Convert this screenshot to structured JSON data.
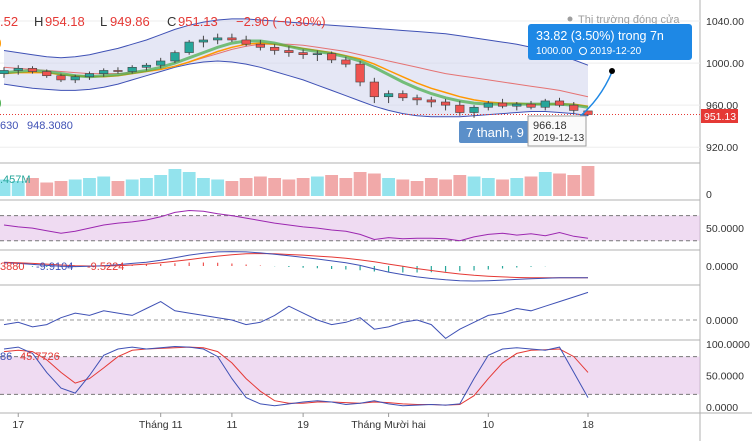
{
  "header": {
    "o_value": ".52",
    "h_label": "H",
    "h_value": "954.18",
    "l_label": "L",
    "l_value": "949.86",
    "c_label": "C",
    "c_value": "951.13",
    "change": "−2.90 (−0.30%)",
    "market_status": "Thị trường đóng cửa"
  },
  "colors": {
    "up": "#26a69a",
    "down": "#ef5350",
    "bb_fill": "#c5cae9",
    "bb_line": "#3f51b5",
    "ma_fast": "#4caf50",
    "ma_mid": "#ff9800",
    "ma_slow": "#e57373",
    "osc_band": "#e1bee7",
    "accent": "#1e88e5"
  },
  "overlay_labels": {
    "ma_value": "630",
    "bb_value": "948.3080",
    "volume_value": ".457M",
    "macd_values": [
      "3880",
      "-9.9104",
      "-9.5224"
    ],
    "stoch_values": [
      "86",
      "45.7726"
    ]
  },
  "measure_tooltip": {
    "line1": "33.82 (3.50%) trong 7n",
    "price": "1000.00",
    "date": "2019-12-20"
  },
  "hover_tooltip": {
    "price": "966.18",
    "date": "2019-12-13"
  },
  "candle_counter": "7 thanh, 9",
  "price_badge": "951.13",
  "price_axis": {
    "ticks": [
      "1040.00",
      "1000.00",
      "960.00",
      "920.00"
    ]
  },
  "pane_axes": {
    "volume": [
      "0"
    ],
    "rsi": [
      "50.0000"
    ],
    "macd": [
      "0.0000"
    ],
    "momentum": [
      "0.0000"
    ],
    "stoch": [
      "100.0000",
      "50.0000",
      "0.0000"
    ]
  },
  "time_axis": {
    "labels": [
      "17",
      "Tháng 11",
      "11",
      "19",
      "Tháng Mười hai",
      "10",
      "18"
    ]
  },
  "chart_data": {
    "type": "candlestick",
    "ylim": [
      905,
      1060
    ],
    "candles": [
      [
        990,
        996,
        986,
        993
      ],
      [
        993,
        998,
        989,
        995
      ],
      [
        995,
        997,
        990,
        992
      ],
      [
        992,
        994,
        986,
        988
      ],
      [
        988,
        990,
        982,
        984
      ],
      [
        984,
        989,
        981,
        987
      ],
      [
        987,
        992,
        984,
        990
      ],
      [
        990,
        995,
        987,
        993
      ],
      [
        993,
        996,
        990,
        992
      ],
      [
        992,
        998,
        990,
        996
      ],
      [
        996,
        1000,
        993,
        998
      ],
      [
        998,
        1005,
        995,
        1002
      ],
      [
        1002,
        1012,
        1000,
        1010
      ],
      [
        1010,
        1022,
        1008,
        1020
      ],
      [
        1020,
        1026,
        1015,
        1022
      ],
      [
        1022,
        1028,
        1018,
        1024
      ],
      [
        1024,
        1028,
        1020,
        1022
      ],
      [
        1022,
        1026,
        1016,
        1018
      ],
      [
        1018,
        1022,
        1012,
        1015
      ],
      [
        1015,
        1018,
        1008,
        1012
      ],
      [
        1012,
        1016,
        1006,
        1010
      ],
      [
        1010,
        1013,
        1004,
        1008
      ],
      [
        1008,
        1012,
        1002,
        1009
      ],
      [
        1009,
        1011,
        1000,
        1003
      ],
      [
        1003,
        1006,
        996,
        999
      ],
      [
        999,
        1002,
        978,
        982
      ],
      [
        982,
        986,
        962,
        968
      ],
      [
        968,
        974,
        962,
        971
      ],
      [
        971,
        974,
        964,
        967
      ],
      [
        967,
        970,
        960,
        965
      ],
      [
        965,
        968,
        958,
        963
      ],
      [
        963,
        966,
        955,
        960
      ],
      [
        960,
        964,
        950,
        953
      ],
      [
        953,
        960,
        948,
        958
      ],
      [
        958,
        964,
        955,
        962
      ],
      [
        962,
        966,
        957,
        959
      ],
      [
        959,
        963,
        955,
        961
      ],
      [
        961,
        964,
        956,
        958
      ],
      [
        958,
        966,
        955,
        964
      ],
      [
        964,
        967,
        958,
        960
      ],
      [
        960,
        963,
        952,
        955
      ],
      [
        954.52,
        954.18,
        949.86,
        951.13
      ]
    ],
    "bb_upper": [
      1012,
      1010,
      1008,
      1006,
      1005,
      1006,
      1008,
      1011,
      1014,
      1018,
      1022,
      1027,
      1032,
      1036,
      1039,
      1041,
      1042,
      1042,
      1041,
      1040,
      1039,
      1038,
      1037,
      1036,
      1035,
      1034,
      1033,
      1032,
      1031,
      1030,
      1029,
      1028,
      1026,
      1024,
      1022,
      1020,
      1018,
      1015,
      1012,
      1008,
      1003,
      998
    ],
    "bb_lower": [
      980,
      978,
      976,
      975,
      974,
      974,
      975,
      977,
      980,
      984,
      988,
      992,
      996,
      999,
      1001,
      1002,
      1001,
      999,
      996,
      992,
      988,
      984,
      979,
      974,
      969,
      964,
      959,
      955,
      952,
      950,
      949,
      949,
      949,
      950,
      951,
      952,
      953,
      954,
      954,
      953,
      952,
      950
    ],
    "ma_fast": [
      991,
      992,
      993,
      992,
      990,
      988,
      987,
      988,
      989,
      991,
      993,
      996,
      1000,
      1005,
      1010,
      1015,
      1019,
      1021,
      1021,
      1019,
      1016,
      1013,
      1011,
      1009,
      1006,
      1002,
      996,
      989,
      982,
      976,
      971,
      967,
      964,
      962,
      961,
      961,
      961,
      961,
      961,
      961,
      960,
      958
    ],
    "ma_mid": [
      990,
      991,
      991,
      991,
      989,
      988,
      987,
      987,
      988,
      990,
      992,
      994,
      997,
      1001,
      1006,
      1011,
      1015,
      1018,
      1019,
      1018,
      1016,
      1014,
      1012,
      1010,
      1007,
      1004,
      999,
      993,
      987,
      981,
      976,
      972,
      968,
      965,
      963,
      962,
      962,
      961,
      961,
      961,
      961,
      959
    ],
    "ma_slow": [
      996,
      995,
      994,
      993,
      992,
      991,
      990,
      990,
      990,
      991,
      992,
      994,
      997,
      1001,
      1005,
      1009,
      1013,
      1016,
      1018,
      1018,
      1018,
      1017,
      1015,
      1013,
      1011,
      1008,
      1005,
      1002,
      999,
      996,
      993,
      990,
      988,
      986,
      984,
      982,
      980,
      978,
      976,
      974,
      971,
      968
    ],
    "volume": [
      0.55,
      0.5,
      0.6,
      0.45,
      0.5,
      0.55,
      0.6,
      0.65,
      0.5,
      0.55,
      0.6,
      0.7,
      0.9,
      0.8,
      0.6,
      0.55,
      0.5,
      0.6,
      0.65,
      0.6,
      0.55,
      0.6,
      0.65,
      0.7,
      0.6,
      0.8,
      0.75,
      0.6,
      0.55,
      0.5,
      0.6,
      0.55,
      0.7,
      0.65,
      0.6,
      0.55,
      0.6,
      0.65,
      0.8,
      0.75,
      0.7,
      1.0
    ],
    "rsi": [
      55,
      52,
      50,
      46,
      42,
      45,
      50,
      55,
      58,
      60,
      63,
      68,
      75,
      78,
      77,
      73,
      70,
      66,
      62,
      58,
      55,
      52,
      50,
      47,
      45,
      40,
      32,
      35,
      33,
      34,
      34,
      33,
      30,
      36,
      40,
      42,
      39,
      41,
      38,
      43,
      37,
      34
    ],
    "macd": [
      1.0,
      0.8,
      0.5,
      0.2,
      -0.1,
      -0.2,
      -0.1,
      0.1,
      0.4,
      0.8,
      1.2,
      1.8,
      2.6,
      3.4,
      4.0,
      4.4,
      4.5,
      4.4,
      4.1,
      3.7,
      3.2,
      2.7,
      2.2,
      1.6,
      1.0,
      0.2,
      -0.9,
      -1.9,
      -2.7,
      -3.4,
      -3.9,
      -4.3,
      -4.6,
      -4.7,
      -4.6,
      -4.4,
      -4.2,
      -4.0,
      -3.8,
      -3.7,
      -3.7,
      -3.7
    ],
    "macd_signal": [
      1.2,
      1.0,
      0.8,
      0.6,
      0.3,
      0.1,
      0.0,
      0.0,
      0.1,
      0.3,
      0.6,
      1.0,
      1.5,
      2.0,
      2.6,
      3.1,
      3.5,
      3.8,
      3.9,
      3.8,
      3.6,
      3.4,
      3.1,
      2.8,
      2.4,
      1.9,
      1.3,
      0.6,
      -0.1,
      -0.8,
      -1.4,
      -2.0,
      -2.5,
      -2.9,
      -3.2,
      -3.4,
      -3.6,
      -3.7,
      -3.7,
      -3.7,
      -3.7,
      -3.7
    ],
    "momentum": [
      -2,
      -1,
      -3,
      -2,
      1,
      3,
      2,
      4,
      3,
      2,
      5,
      8,
      4,
      3,
      2,
      1,
      0,
      -2,
      -1,
      2,
      6,
      3,
      0,
      -2,
      -1,
      1,
      -4,
      -3,
      -1,
      0,
      -2,
      -8,
      -4,
      -1,
      2,
      3,
      5,
      4,
      6,
      8,
      10,
      12
    ],
    "stoch_k": [
      92,
      95,
      85,
      55,
      30,
      22,
      50,
      82,
      92,
      95,
      92,
      94,
      96,
      95,
      92,
      80,
      45,
      15,
      5,
      2,
      5,
      8,
      10,
      8,
      4,
      6,
      10,
      5,
      2,
      3,
      4,
      3,
      5,
      45,
      82,
      92,
      94,
      92,
      90,
      95,
      55,
      15
    ],
    "stoch_d": [
      88,
      90,
      88,
      75,
      55,
      38,
      45,
      62,
      80,
      90,
      92,
      93,
      94,
      95,
      94,
      88,
      70,
      45,
      25,
      10,
      6,
      6,
      8,
      8,
      7,
      6,
      8,
      7,
      5,
      4,
      4,
      3,
      4,
      18,
      45,
      70,
      85,
      90,
      91,
      92,
      80,
      55
    ]
  }
}
